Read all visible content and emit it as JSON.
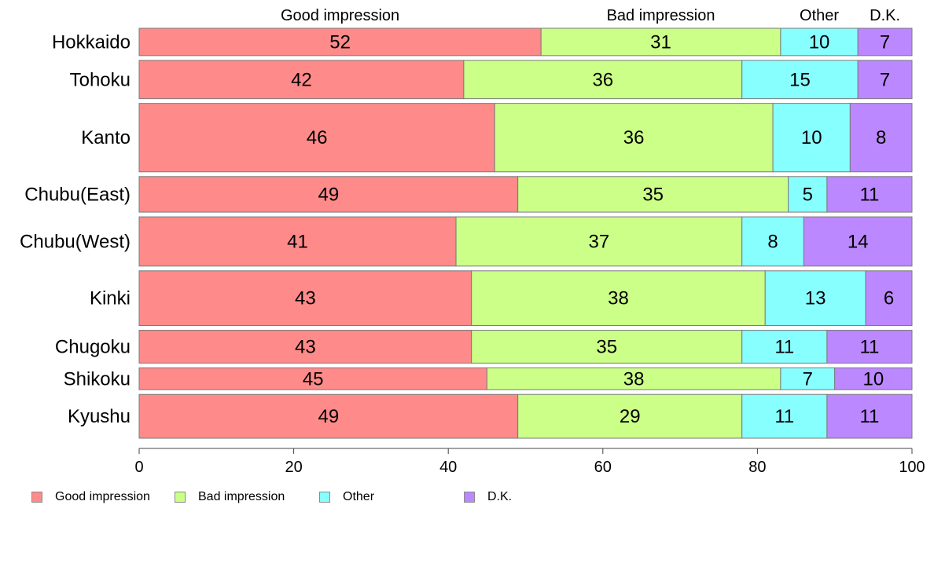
{
  "chart_data": {
    "type": "bar",
    "orientation": "horizontal",
    "stacked": true,
    "normalized_width": true,
    "categories": [
      "Hokkaido",
      "Tohoku",
      "Kanto",
      "Chubu(East)",
      "Chubu(West)",
      "Kinki",
      "Chugoku",
      "Shikoku",
      "Kyushu"
    ],
    "series": [
      {
        "name": "Good impression",
        "color": "#ff8a8a",
        "values": [
          52,
          42,
          46,
          49,
          41,
          43,
          43,
          45,
          49
        ]
      },
      {
        "name": "Bad impression",
        "color": "#ccff88",
        "values": [
          31,
          36,
          36,
          35,
          37,
          38,
          35,
          38,
          29
        ]
      },
      {
        "name": "Other",
        "color": "#88ffff",
        "values": [
          10,
          15,
          10,
          5,
          8,
          13,
          11,
          7,
          11
        ]
      },
      {
        "name": "D.K.",
        "color": "#bb88ff",
        "values": [
          7,
          7,
          8,
          11,
          14,
          6,
          11,
          10,
          11
        ]
      }
    ],
    "xlim": [
      0,
      100
    ],
    "x_ticks": [
      "0",
      "20",
      "40",
      "60",
      "80",
      "100"
    ],
    "grid": false,
    "legend_position": "bottom-left"
  }
}
